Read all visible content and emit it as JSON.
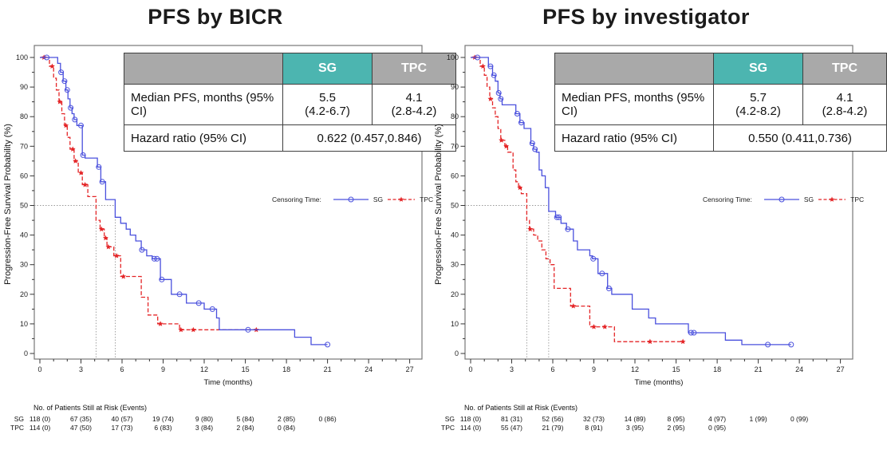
{
  "colors": {
    "sg": "#4a50dd",
    "tpc": "#e42527",
    "teal_header": "#4cb5b0",
    "gray_header": "#a9a9a9"
  },
  "legend": {
    "prefix": "Censoring Time:",
    "sg_label": "SG",
    "tpc_label": "TPC"
  },
  "risk_header": "No. of Patients Still at Risk (Events)",
  "panels": [
    {
      "title": "PFS by BICR",
      "stats": {
        "col_sg": "SG",
        "col_tpc": "TPC",
        "median_label": "Median PFS, months (95% CI)",
        "sg_median": "5.5",
        "sg_ci": "(4.2-6.7)",
        "tpc_median": "4.1",
        "tpc_ci": "(2.8-4.2)",
        "hr_label": "Hazard ratio (95% CI)",
        "hr_value": "0.622 (0.457,0.846)"
      }
    },
    {
      "title": "PFS by investigator",
      "stats": {
        "col_sg": "SG",
        "col_tpc": "TPC",
        "median_label": "Median PFS, months (95% CI)",
        "sg_median": "5.7",
        "sg_ci": "(4.2-8.2)",
        "tpc_median": "4.1",
        "tpc_ci": "(2.8-4.2)",
        "hr_label": "Hazard ratio (95% CI)",
        "hr_value": "0.550 (0.411,0.736)"
      }
    }
  ],
  "chart_data": [
    {
      "type": "line",
      "title": "PFS by BICR",
      "xlabel": "Time (months)",
      "ylabel": "Progression-Free Survival Probability (%)",
      "xlim": [
        0,
        27
      ],
      "ylim": [
        0,
        100
      ],
      "x_major_tick_step": 3,
      "x_minor_tick_step": 1,
      "y_major_tick_step": 10,
      "y_minor_tick_step": 5,
      "grid": false,
      "legend_position": "right-middle",
      "reference": {
        "y": 50,
        "median_sg": 5.5,
        "median_tpc": 4.1
      },
      "series": [
        {
          "name": "SG",
          "color_key": "sg",
          "style": "solid",
          "marker": "circle",
          "steps": [
            [
              0,
              100
            ],
            [
              1.3,
              98
            ],
            [
              1.5,
              95
            ],
            [
              1.7,
              92
            ],
            [
              1.9,
              89
            ],
            [
              2.05,
              86
            ],
            [
              2.2,
              83
            ],
            [
              2.35,
              81
            ],
            [
              2.5,
              79
            ],
            [
              2.7,
              77
            ],
            [
              3.1,
              67
            ],
            [
              3.3,
              66
            ],
            [
              4.2,
              63
            ],
            [
              4.45,
              58
            ],
            [
              4.8,
              52
            ],
            [
              5.5,
              46
            ],
            [
              5.9,
              44
            ],
            [
              6.3,
              42
            ],
            [
              6.6,
              40
            ],
            [
              7.0,
              38
            ],
            [
              7.4,
              35
            ],
            [
              7.8,
              33
            ],
            [
              8.2,
              32
            ],
            [
              8.8,
              25
            ],
            [
              9.6,
              20
            ],
            [
              10.7,
              17
            ],
            [
              12.0,
              15
            ],
            [
              12.9,
              12
            ],
            [
              13.1,
              8
            ],
            [
              18.6,
              5.5
            ],
            [
              19.8,
              3
            ]
          ],
          "end": 21.0,
          "censors": [
            [
              0.5,
              100
            ],
            [
              1.55,
              95
            ],
            [
              1.8,
              92
            ],
            [
              2.0,
              89
            ],
            [
              2.25,
              83
            ],
            [
              2.55,
              79
            ],
            [
              3.0,
              77
            ],
            [
              3.15,
              67
            ],
            [
              4.3,
              63
            ],
            [
              4.55,
              58
            ],
            [
              7.45,
              35
            ],
            [
              8.35,
              32
            ],
            [
              8.55,
              32
            ],
            [
              8.9,
              25
            ],
            [
              10.2,
              20
            ],
            [
              11.6,
              17
            ],
            [
              12.6,
              15
            ],
            [
              15.2,
              8
            ],
            [
              21.0,
              3
            ]
          ]
        },
        {
          "name": "TPC",
          "color_key": "tpc",
          "style": "dashed",
          "marker": "star",
          "steps": [
            [
              0,
              100
            ],
            [
              0.7,
              97
            ],
            [
              1.0,
              93
            ],
            [
              1.2,
              89
            ],
            [
              1.4,
              85
            ],
            [
              1.6,
              81
            ],
            [
              1.8,
              77
            ],
            [
              2.0,
              73
            ],
            [
              2.2,
              69
            ],
            [
              2.5,
              65
            ],
            [
              2.8,
              61
            ],
            [
              3.1,
              57
            ],
            [
              3.5,
              53
            ],
            [
              4.1,
              45
            ],
            [
              4.4,
              42
            ],
            [
              4.7,
              39
            ],
            [
              4.9,
              36
            ],
            [
              5.4,
              33
            ],
            [
              5.9,
              26
            ],
            [
              7.4,
              19
            ],
            [
              7.9,
              13
            ],
            [
              8.6,
              10
            ],
            [
              10.2,
              8
            ]
          ],
          "end": 15.8,
          "censors": [
            [
              0.3,
              100
            ],
            [
              0.9,
              97
            ],
            [
              1.45,
              85
            ],
            [
              1.9,
              77
            ],
            [
              2.4,
              69
            ],
            [
              2.6,
              65
            ],
            [
              3.0,
              61
            ],
            [
              3.3,
              57
            ],
            [
              4.5,
              42
            ],
            [
              4.8,
              39
            ],
            [
              5.0,
              36
            ],
            [
              5.6,
              33
            ],
            [
              6.1,
              26
            ],
            [
              8.8,
              10
            ],
            [
              10.3,
              8
            ],
            [
              11.2,
              8
            ],
            [
              15.8,
              8
            ]
          ]
        }
      ],
      "risk_table": {
        "rows": [
          {
            "label": "SG",
            "times": [
              0,
              3,
              6,
              9,
              12,
              15,
              18,
              21
            ],
            "values": [
              "118 (0)",
              "67 (35)",
              "40 (57)",
              "19 (74)",
              "9 (80)",
              "5 (84)",
              "2 (85)",
              "0 (86)"
            ]
          },
          {
            "label": "TPC",
            "times": [
              0,
              3,
              6,
              9,
              12,
              15,
              18
            ],
            "values": [
              "114 (0)",
              "47 (50)",
              "17 (73)",
              "6 (83)",
              "3 (84)",
              "2 (84)",
              "0 (84)"
            ]
          }
        ]
      }
    },
    {
      "type": "line",
      "title": "PFS by investigator",
      "xlabel": "Time (months)",
      "ylabel": "Progression-Free Survival Probability (%)",
      "xlim": [
        0,
        27
      ],
      "ylim": [
        0,
        100
      ],
      "x_major_tick_step": 3,
      "x_minor_tick_step": 1,
      "y_major_tick_step": 10,
      "y_minor_tick_step": 5,
      "grid": false,
      "legend_position": "right-middle",
      "reference": {
        "y": 50,
        "median_sg": 5.7,
        "median_tpc": 4.1
      },
      "series": [
        {
          "name": "SG",
          "color_key": "sg",
          "style": "solid",
          "marker": "circle",
          "steps": [
            [
              0,
              100
            ],
            [
              1.3,
              97
            ],
            [
              1.6,
              94
            ],
            [
              1.8,
              92
            ],
            [
              2.0,
              88
            ],
            [
              2.15,
              86
            ],
            [
              2.3,
              84
            ],
            [
              3.3,
              81
            ],
            [
              3.6,
              78
            ],
            [
              3.9,
              76
            ],
            [
              4.4,
              71
            ],
            [
              4.6,
              69
            ],
            [
              4.8,
              68
            ],
            [
              5.0,
              62
            ],
            [
              5.2,
              60
            ],
            [
              5.45,
              56
            ],
            [
              5.7,
              48
            ],
            [
              6.2,
              46
            ],
            [
              6.6,
              44
            ],
            [
              7.0,
              42
            ],
            [
              7.5,
              38
            ],
            [
              7.8,
              35
            ],
            [
              8.7,
              33
            ],
            [
              8.9,
              32
            ],
            [
              9.3,
              27
            ],
            [
              10.0,
              22
            ],
            [
              10.3,
              20
            ],
            [
              11.8,
              15
            ],
            [
              13.0,
              12
            ],
            [
              13.5,
              10
            ],
            [
              15.9,
              7
            ],
            [
              18.6,
              4.5
            ],
            [
              19.8,
              3
            ]
          ],
          "end": 23.4,
          "censors": [
            [
              0.5,
              100
            ],
            [
              1.45,
              97
            ],
            [
              1.7,
              94
            ],
            [
              2.05,
              88
            ],
            [
              2.2,
              86
            ],
            [
              3.4,
              81
            ],
            [
              3.7,
              78
            ],
            [
              4.5,
              71
            ],
            [
              4.7,
              69
            ],
            [
              6.3,
              46
            ],
            [
              6.45,
              46
            ],
            [
              7.1,
              42
            ],
            [
              8.95,
              32
            ],
            [
              9.6,
              27
            ],
            [
              10.1,
              22
            ],
            [
              16.1,
              7
            ],
            [
              16.3,
              7
            ],
            [
              21.7,
              3
            ],
            [
              23.4,
              3
            ]
          ]
        },
        {
          "name": "TPC",
          "color_key": "tpc",
          "style": "dashed",
          "marker": "star",
          "steps": [
            [
              0,
              100
            ],
            [
              0.7,
              97
            ],
            [
              1.0,
              94
            ],
            [
              1.2,
              90
            ],
            [
              1.4,
              86
            ],
            [
              1.6,
              83
            ],
            [
              1.8,
              80
            ],
            [
              2.0,
              76
            ],
            [
              2.2,
              72
            ],
            [
              2.5,
              70
            ],
            [
              2.7,
              68
            ],
            [
              3.1,
              62
            ],
            [
              3.3,
              58
            ],
            [
              3.5,
              56
            ],
            [
              3.7,
              54
            ],
            [
              4.1,
              45
            ],
            [
              4.3,
              42
            ],
            [
              4.6,
              40
            ],
            [
              4.9,
              38
            ],
            [
              5.2,
              35
            ],
            [
              5.5,
              32
            ],
            [
              5.8,
              30
            ],
            [
              6.1,
              22
            ],
            [
              7.3,
              16
            ],
            [
              8.7,
              9
            ],
            [
              10.5,
              4
            ]
          ],
          "end": 15.5,
          "censors": [
            [
              0.3,
              100
            ],
            [
              0.9,
              97
            ],
            [
              1.45,
              86
            ],
            [
              2.25,
              72
            ],
            [
              2.6,
              70
            ],
            [
              3.6,
              56
            ],
            [
              4.35,
              42
            ],
            [
              7.5,
              16
            ],
            [
              9.0,
              9
            ],
            [
              9.8,
              9
            ],
            [
              13.1,
              4
            ],
            [
              15.5,
              4
            ]
          ]
        }
      ],
      "risk_table": {
        "rows": [
          {
            "label": "SG",
            "times": [
              0,
              3,
              6,
              9,
              12,
              15,
              18,
              21,
              24
            ],
            "values": [
              "118 (0)",
              "81 (31)",
              "52 (56)",
              "32 (73)",
              "14 (89)",
              "8 (95)",
              "4 (97)",
              "1 (99)",
              "0 (99)"
            ]
          },
          {
            "label": "TPC",
            "times": [
              0,
              3,
              6,
              9,
              12,
              15,
              18
            ],
            "values": [
              "114 (0)",
              "55 (47)",
              "21 (79)",
              "8 (91)",
              "3 (95)",
              "2 (95)",
              "0 (95)"
            ]
          }
        ]
      }
    }
  ]
}
